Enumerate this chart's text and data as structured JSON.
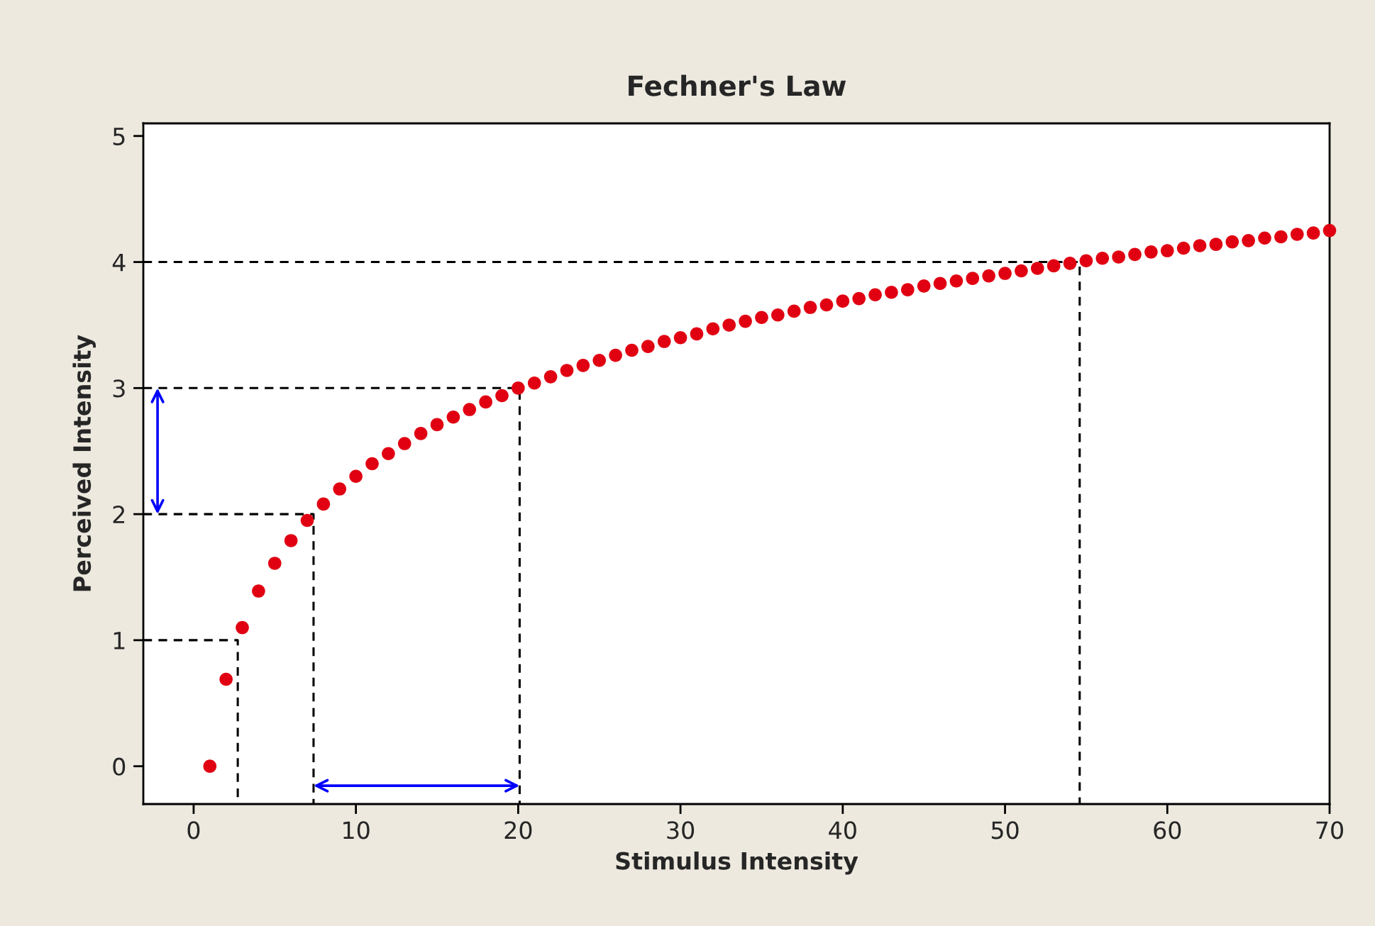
{
  "chart_data": {
    "type": "scatter",
    "title": "Fechner's Law",
    "xlabel": "Stimulus Intensity",
    "ylabel": "Perceived Intensity",
    "xlim": [
      -3.1,
      70
    ],
    "ylim": [
      -0.3,
      5.1
    ],
    "xticks": [
      0,
      10,
      20,
      30,
      40,
      50,
      60,
      70
    ],
    "yticks": [
      0,
      1,
      2,
      3,
      4,
      5
    ],
    "grid": false,
    "series": [
      {
        "marker": "circle",
        "color": "#e00012",
        "x": [
          1,
          2,
          3,
          4,
          5,
          6,
          7,
          8,
          9,
          10,
          11,
          12,
          13,
          14,
          15,
          16,
          17,
          18,
          19,
          20,
          21,
          22,
          23,
          24,
          25,
          26,
          27,
          28,
          29,
          30,
          31,
          32,
          33,
          34,
          35,
          36,
          37,
          38,
          39,
          40,
          41,
          42,
          43,
          44,
          45,
          46,
          47,
          48,
          49,
          50,
          51,
          52,
          53,
          54,
          55,
          56,
          57,
          58,
          59,
          60,
          61,
          62,
          63,
          64,
          65,
          66,
          67,
          68,
          69,
          70
        ],
        "values": [
          0,
          0.69,
          1.1,
          1.39,
          1.61,
          1.79,
          1.95,
          2.08,
          2.2,
          2.3,
          2.4,
          2.48,
          2.56,
          2.64,
          2.71,
          2.77,
          2.83,
          2.89,
          2.94,
          3.0,
          3.04,
          3.09,
          3.14,
          3.18,
          3.22,
          3.26,
          3.3,
          3.33,
          3.37,
          3.4,
          3.43,
          3.47,
          3.5,
          3.53,
          3.56,
          3.58,
          3.61,
          3.64,
          3.66,
          3.69,
          3.71,
          3.74,
          3.76,
          3.78,
          3.81,
          3.83,
          3.85,
          3.87,
          3.89,
          3.91,
          3.93,
          3.95,
          3.97,
          3.99,
          4.01,
          4.03,
          4.04,
          4.06,
          4.08,
          4.09,
          4.11,
          4.13,
          4.14,
          4.16,
          4.17,
          4.19,
          4.2,
          4.22,
          4.23,
          4.25
        ]
      },
      {
        "type": "line",
        "color": "#000000",
        "line_style": "dashed",
        "x": [
          -3.1,
          2.72,
          2.72
        ],
        "values": [
          1,
          1,
          -0.3
        ]
      },
      {
        "type": "line",
        "color": "#000000",
        "line_style": "dashed",
        "x": [
          -3.1,
          7.39,
          7.39
        ],
        "values": [
          2,
          2,
          -0.3
        ]
      },
      {
        "type": "line",
        "color": "#000000",
        "line_style": "dashed",
        "x": [
          -3.1,
          20.09,
          20.09
        ],
        "values": [
          3,
          3,
          -0.3
        ]
      },
      {
        "type": "line",
        "color": "#000000",
        "line_style": "dashed",
        "x": [
          -3.1,
          54.6,
          54.6
        ],
        "values": [
          4,
          4,
          -0.3
        ]
      }
    ]
  }
}
